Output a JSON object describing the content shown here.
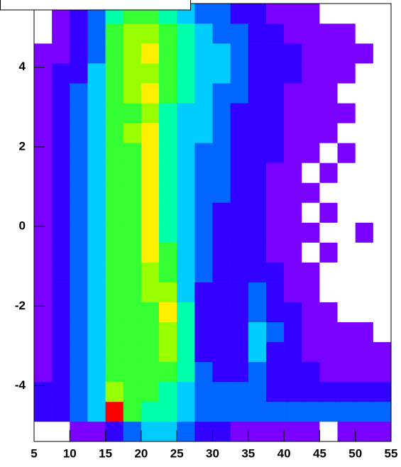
{
  "chart_data": {
    "type": "heatmap",
    "xbins": [
      5,
      7.5,
      10,
      12.5,
      15,
      17.5,
      20,
      22.5,
      25,
      27.5,
      30,
      32.5,
      35,
      37.5,
      40,
      42.5,
      45,
      47.5,
      50,
      52.5,
      55
    ],
    "ybins": [
      -5.4,
      -4.9,
      -4.4,
      -3.9,
      -3.4,
      -2.9,
      -2.4,
      -1.9,
      -1.4,
      -0.9,
      -0.4,
      0.1,
      0.6,
      1.1,
      1.6,
      2.1,
      2.6,
      3.1,
      3.6,
      4.1,
      4.6,
      5.1,
      5.6
    ],
    "z": [
      [
        0,
        0,
        1,
        1,
        2,
        3,
        4,
        4,
        3,
        2,
        2,
        1,
        1,
        1,
        1,
        1,
        0,
        1,
        1,
        1
      ],
      [
        2,
        2,
        3,
        4,
        10,
        6,
        5,
        5,
        4,
        3,
        3,
        3,
        3,
        3,
        3,
        3,
        3,
        3,
        3,
        3
      ],
      [
        2,
        2,
        3,
        4,
        7,
        6,
        6,
        5,
        4,
        3,
        3,
        3,
        3,
        2,
        2,
        2,
        2,
        2,
        2,
        2
      ],
      [
        1,
        2,
        3,
        4,
        6,
        6,
        6,
        6,
        5,
        3,
        2,
        2,
        3,
        2,
        2,
        2,
        1,
        1,
        1,
        1
      ],
      [
        1,
        2,
        3,
        4,
        6,
        6,
        6,
        7,
        5,
        2,
        2,
        2,
        4,
        2,
        2,
        1,
        1,
        1,
        1,
        1
      ],
      [
        1,
        2,
        3,
        4,
        6,
        6,
        6,
        7,
        5,
        2,
        2,
        2,
        4,
        3,
        2,
        1,
        1,
        1,
        1,
        0
      ],
      [
        1,
        2,
        3,
        4,
        6,
        6,
        6,
        8,
        5,
        2,
        2,
        2,
        3,
        2,
        2,
        1,
        1,
        0,
        0,
        0
      ],
      [
        1,
        2,
        3,
        4,
        6,
        6,
        7,
        7,
        4,
        2,
        2,
        2,
        3,
        2,
        1,
        1,
        0,
        0,
        0,
        0
      ],
      [
        1,
        2,
        3,
        4,
        6,
        6,
        7,
        6,
        4,
        3,
        2,
        2,
        2,
        2,
        1,
        1,
        0,
        0,
        0,
        0
      ],
      [
        1,
        2,
        3,
        4,
        6,
        6,
        8,
        6,
        4,
        3,
        2,
        2,
        2,
        1,
        1,
        0,
        1,
        0,
        0,
        0
      ],
      [
        1,
        2,
        3,
        4,
        6,
        6,
        8,
        5,
        4,
        3,
        2,
        2,
        2,
        1,
        1,
        1,
        0,
        0,
        1,
        0
      ],
      [
        1,
        2,
        3,
        4,
        6,
        6,
        8,
        5,
        4,
        3,
        2,
        2,
        2,
        1,
        1,
        0,
        1,
        0,
        0,
        0
      ],
      [
        1,
        2,
        3,
        4,
        6,
        6,
        8,
        5,
        4,
        3,
        3,
        2,
        2,
        1,
        1,
        1,
        0,
        0,
        0,
        0
      ],
      [
        1,
        2,
        3,
        4,
        6,
        6,
        8,
        5,
        4,
        3,
        3,
        2,
        2,
        1,
        1,
        0,
        1,
        0,
        0,
        0
      ],
      [
        1,
        2,
        3,
        4,
        6,
        6,
        8,
        5,
        4,
        3,
        3,
        2,
        2,
        2,
        1,
        1,
        0,
        1,
        0,
        0
      ],
      [
        1,
        2,
        3,
        4,
        6,
        7,
        8,
        5,
        4,
        4,
        3,
        2,
        2,
        2,
        1,
        1,
        1,
        0,
        0,
        0
      ],
      [
        1,
        2,
        3,
        4,
        6,
        6,
        7,
        5,
        4,
        4,
        3,
        2,
        2,
        2,
        1,
        1,
        1,
        1,
        0,
        0
      ],
      [
        1,
        2,
        3,
        4,
        6,
        7,
        8,
        6,
        5,
        4,
        3,
        3,
        2,
        2,
        1,
        1,
        1,
        0,
        0,
        0
      ],
      [
        1,
        2,
        2,
        4,
        6,
        7,
        7,
        6,
        5,
        4,
        4,
        3,
        2,
        2,
        2,
        1,
        1,
        1,
        0,
        0
      ],
      [
        1,
        1,
        2,
        3,
        6,
        7,
        8,
        6,
        5,
        4,
        4,
        3,
        2,
        2,
        2,
        1,
        1,
        1,
        1,
        0
      ],
      [
        0,
        1,
        2,
        3,
        6,
        7,
        7,
        6,
        5,
        4,
        3,
        3,
        2,
        2,
        1,
        1,
        1,
        1,
        0,
        0
      ],
      [
        0,
        1,
        2,
        3,
        5,
        6,
        6,
        5,
        4,
        3,
        3,
        2,
        2,
        1,
        1,
        1,
        0,
        0,
        0,
        0
      ]
    ],
    "zlim": [
      0,
      10
    ],
    "palette": [
      "#ffffff",
      "#7a00ff",
      "#3300ff",
      "#0066ff",
      "#00ccff",
      "#00ffaa",
      "#33ff33",
      "#99ff00",
      "#ffee00",
      "#ff9900",
      "#ff0000"
    ],
    "xlim": [
      5,
      55
    ],
    "ylim": [
      -5.4,
      5.6
    ],
    "xticks": [
      5,
      10,
      15,
      20,
      25,
      30,
      35,
      40,
      45,
      50,
      55
    ],
    "yticks": [
      -4,
      -2,
      0,
      2,
      4
    ]
  }
}
